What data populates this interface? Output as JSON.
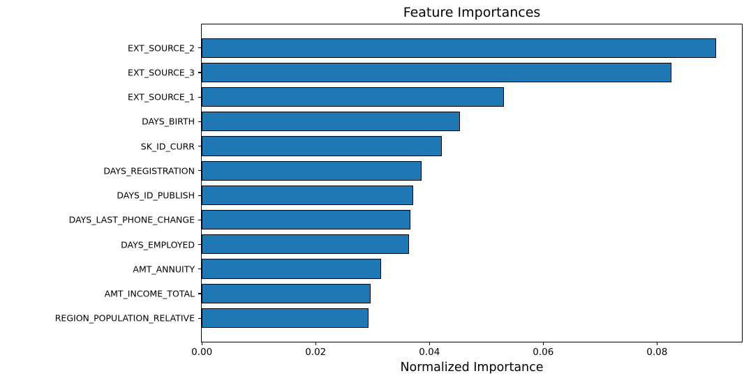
{
  "chart_data": {
    "type": "bar",
    "orientation": "horizontal",
    "title": "Feature Importances",
    "xlabel": "Normalized Importance",
    "ylabel": "",
    "categories": [
      "EXT_SOURCE_2",
      "EXT_SOURCE_3",
      "EXT_SOURCE_1",
      "DAYS_BIRTH",
      "SK_ID_CURR",
      "DAYS_REGISTRATION",
      "DAYS_ID_PUBLISH",
      "DAYS_LAST_PHONE_CHANGE",
      "DAYS_EMPLOYED",
      "AMT_ANNUITY",
      "AMT_INCOME_TOTAL",
      "REGION_POPULATION_RELATIVE"
    ],
    "values": [
      0.0904,
      0.0825,
      0.0531,
      0.0454,
      0.0422,
      0.0387,
      0.0372,
      0.0367,
      0.0364,
      0.0315,
      0.0297,
      0.0293
    ],
    "xlim": [
      0.0,
      0.0949
    ],
    "xticks": [
      0.0,
      0.02,
      0.04,
      0.06,
      0.08
    ],
    "xtick_labels": [
      "0.00",
      "0.02",
      "0.04",
      "0.06",
      "0.08"
    ],
    "grid": false,
    "legend": null,
    "bar_color": "#1f77b4",
    "bar_edge_color": "#000000",
    "text_color": "#000000",
    "background_color": "#ffffff"
  }
}
